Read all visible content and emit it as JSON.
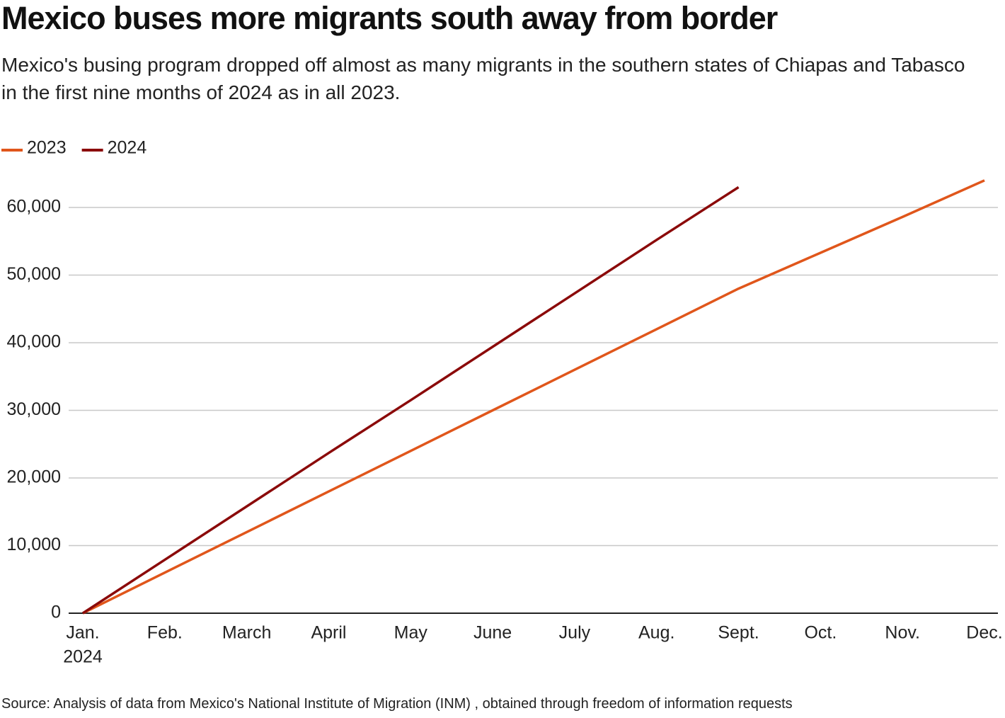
{
  "chart_data": {
    "type": "line",
    "title": "Mexico buses more migrants south away from border",
    "subtitle": "Mexico's busing program dropped off almost as many migrants in the southern states of Chiapas and Tabasco in the first nine months of 2024 as in all 2023.",
    "source": "Source: Analysis of data from Mexico's National Institute of Migration (INM) , obtained through freedom of information requests",
    "categories": [
      "Jan.",
      "Feb.",
      "March",
      "April",
      "May",
      "June",
      "July",
      "Aug.",
      "Sept.",
      "Oct.",
      "Nov.",
      "Dec."
    ],
    "x_sublabel": "2024",
    "series": [
      {
        "name": "2023",
        "color": "#e0561b",
        "values": [
          0,
          6000,
          12000,
          18000,
          24000,
          30000,
          36000,
          42000,
          48000,
          53300,
          58600,
          64000
        ]
      },
      {
        "name": "2024",
        "color": "#8b0a0a",
        "values": [
          0,
          7900,
          15800,
          23700,
          31500,
          39400,
          47300,
          55200,
          63000,
          null,
          null,
          null
        ]
      }
    ],
    "ylim": [
      0,
      66000
    ],
    "yticks": [
      0,
      {
        "value": 10000,
        "label": "10,000"
      },
      {
        "value": 20000,
        "label": "20,000"
      },
      {
        "value": 30000,
        "label": "30,000"
      },
      {
        "value": 40000,
        "label": "40,000"
      },
      {
        "value": 50000,
        "label": "50,000"
      },
      {
        "value": 60000,
        "label": "60,000"
      }
    ],
    "grid": true,
    "legend": "top-left"
  }
}
